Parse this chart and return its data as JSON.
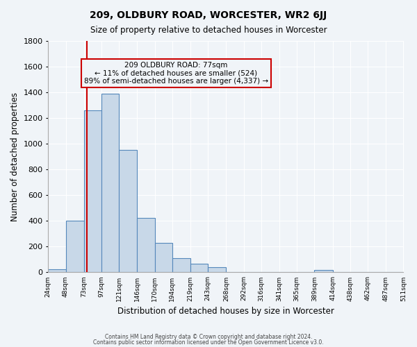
{
  "title": "209, OLDBURY ROAD, WORCESTER, WR2 6JJ",
  "subtitle": "Size of property relative to detached houses in Worcester",
  "xlabel": "Distribution of detached houses by size in Worcester",
  "ylabel": "Number of detached properties",
  "bar_values": [
    25,
    400,
    1260,
    1390,
    950,
    425,
    230,
    110,
    65,
    40,
    5,
    5,
    0,
    0,
    0,
    20,
    0,
    0,
    0,
    0
  ],
  "bin_edges": [
    24,
    48,
    73,
    97,
    121,
    146,
    170,
    194,
    219,
    243,
    268,
    292,
    316,
    341,
    365,
    389,
    414,
    438,
    462,
    487,
    511
  ],
  "tick_labels": [
    "24sqm",
    "48sqm",
    "73sqm",
    "97sqm",
    "121sqm",
    "146sqm",
    "170sqm",
    "194sqm",
    "219sqm",
    "243sqm",
    "268sqm",
    "292sqm",
    "316sqm",
    "341sqm",
    "365sqm",
    "389sqm",
    "414sqm",
    "438sqm",
    "462sqm",
    "487sqm",
    "511sqm"
  ],
  "ylim": [
    0,
    1800
  ],
  "yticks": [
    0,
    200,
    400,
    600,
    800,
    1000,
    1200,
    1400,
    1600,
    1800
  ],
  "bar_color": "#c8d8e8",
  "bar_edge_color": "#5588bb",
  "vline_x": 77,
  "vline_color": "#cc0000",
  "annotation_line1": "209 OLDBURY ROAD: 77sqm",
  "annotation_line2": "← 11% of detached houses are smaller (524)",
  "annotation_line3": "89% of semi-detached houses are larger (4,337) →",
  "box_edge_color": "#cc0000",
  "background_color": "#f0f4f8",
  "grid_color": "#ffffff",
  "footer1": "Contains HM Land Registry data © Crown copyright and database right 2024.",
  "footer2": "Contains public sector information licensed under the Open Government Licence v3.0."
}
